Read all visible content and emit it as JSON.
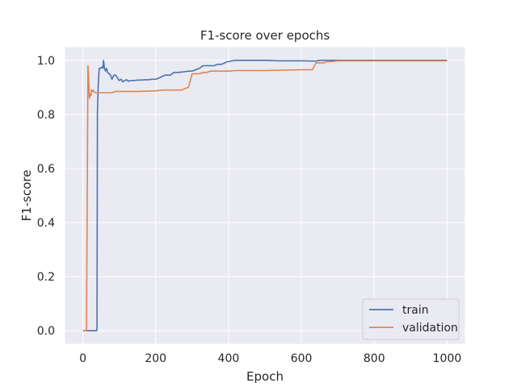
{
  "chart_data": {
    "type": "line",
    "title": "F1-score over epochs",
    "xlabel": "Epoch",
    "ylabel": "F1-score",
    "xlim": [
      -50,
      1050
    ],
    "ylim": [
      -0.05,
      1.05
    ],
    "xticks": [
      0,
      200,
      400,
      600,
      800,
      1000
    ],
    "xtick_labels": [
      "0",
      "200",
      "400",
      "600",
      "800",
      "1000"
    ],
    "yticks": [
      0.0,
      0.2,
      0.4,
      0.6,
      0.8,
      1.0
    ],
    "ytick_labels": [
      "0.0",
      "0.2",
      "0.4",
      "0.6",
      "0.8",
      "1.0"
    ],
    "grid": true,
    "legend_position": "bottom-right",
    "series": [
      {
        "name": "train",
        "color": "#4c72b0",
        "x": [
          0,
          10,
          20,
          30,
          38,
          39,
          40,
          42,
          45,
          48,
          52,
          55,
          57,
          59,
          62,
          65,
          68,
          72,
          76,
          80,
          85,
          90,
          95,
          100,
          105,
          110,
          115,
          120,
          125,
          130,
          140,
          150,
          160,
          170,
          180,
          190,
          200,
          210,
          225,
          230,
          240,
          250,
          260,
          280,
          290,
          300,
          310,
          320,
          330,
          340,
          350,
          360,
          370,
          380,
          390,
          395,
          400,
          410,
          420,
          430,
          500,
          540,
          600,
          640,
          650,
          660,
          670,
          700,
          750,
          800,
          850,
          900,
          950,
          1000
        ],
        "y": [
          0.0,
          0.0,
          0.0,
          0.0,
          0.0,
          0.02,
          0.8,
          0.9,
          0.97,
          0.97,
          0.975,
          0.97,
          1.0,
          0.975,
          0.96,
          0.97,
          0.955,
          0.95,
          0.945,
          0.93,
          0.945,
          0.945,
          0.935,
          0.925,
          0.93,
          0.92,
          0.925,
          0.928,
          0.922,
          0.925,
          0.925,
          0.927,
          0.927,
          0.928,
          0.928,
          0.93,
          0.93,
          0.935,
          0.945,
          0.945,
          0.945,
          0.955,
          0.955,
          0.958,
          0.96,
          0.96,
          0.965,
          0.97,
          0.98,
          0.98,
          0.98,
          0.98,
          0.985,
          0.985,
          0.99,
          0.995,
          0.995,
          0.998,
          1.0,
          1.0,
          1.0,
          0.998,
          0.998,
          0.997,
          1.0,
          1.0,
          1.0,
          1.0,
          1.0,
          1.0,
          1.0,
          1.0,
          1.0,
          1.0
        ]
      },
      {
        "name": "validation",
        "color": "#dd8452",
        "x": [
          0,
          10,
          12,
          14,
          16,
          18,
          20,
          22,
          24,
          26,
          28,
          30,
          35,
          40,
          50,
          60,
          70,
          80,
          90,
          100,
          150,
          200,
          220,
          250,
          270,
          290,
          300,
          310,
          320,
          330,
          340,
          350,
          400,
          420,
          500,
          600,
          630,
          640,
          650,
          660,
          670,
          680,
          700,
          800,
          900,
          1000
        ],
        "y": [
          0.0,
          0.0,
          0.5,
          0.98,
          0.93,
          0.86,
          0.875,
          0.87,
          0.89,
          0.885,
          0.89,
          0.885,
          0.88,
          0.88,
          0.88,
          0.88,
          0.88,
          0.88,
          0.885,
          0.885,
          0.885,
          0.887,
          0.89,
          0.89,
          0.89,
          0.9,
          0.95,
          0.95,
          0.95,
          0.955,
          0.955,
          0.96,
          0.96,
          0.962,
          0.962,
          0.965,
          0.965,
          0.99,
          0.99,
          0.99,
          0.995,
          0.995,
          0.998,
          0.998,
          0.998,
          0.998
        ]
      }
    ]
  }
}
